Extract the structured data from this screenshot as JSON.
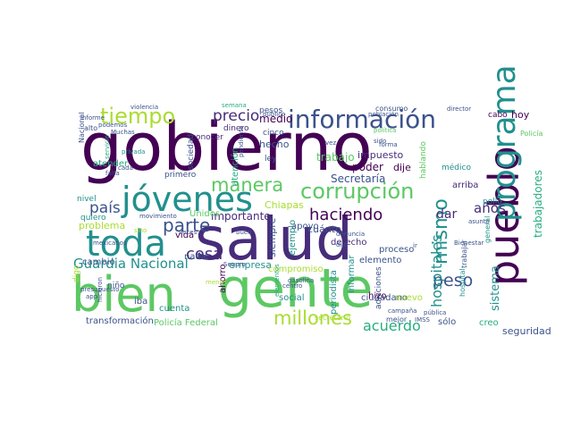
{
  "palette": {
    "dark_purple": "#440154",
    "purple": "#472c7a",
    "indigo": "#3b528b",
    "blue": "#31688e",
    "teal": "#21908d",
    "sea": "#27ad81",
    "green": "#5cc863",
    "lime": "#aadc32",
    "yellow": "#fde725"
  },
  "words": [
    {
      "id": "gobierno",
      "text": "gobierno",
      "color": "dark_purple"
    },
    {
      "id": "salud",
      "text": "salud",
      "color": "purple"
    },
    {
      "id": "gente",
      "text": "gente",
      "color": "green"
    },
    {
      "id": "bien",
      "text": "bien",
      "color": "green"
    },
    {
      "id": "jovenes",
      "text": "jóvenes",
      "color": "teal"
    },
    {
      "id": "toda",
      "text": "toda",
      "color": "teal"
    },
    {
      "id": "pueblo",
      "text": "pueblo",
      "color": "dark_purple"
    },
    {
      "id": "programa",
      "text": "programa",
      "color": "teal"
    },
    {
      "id": "informacion",
      "text": "información",
      "color": "indigo"
    },
    {
      "id": "corrupcion",
      "text": "corrupción",
      "color": "green"
    },
    {
      "id": "tiempo",
      "text": "tiempo",
      "color": "lime"
    },
    {
      "id": "precio",
      "text": "precio",
      "color": "purple"
    },
    {
      "id": "manera",
      "text": "manera",
      "color": "green"
    },
    {
      "id": "mismo",
      "text": "mismo",
      "color": "teal"
    },
    {
      "id": "millones",
      "text": "millones",
      "color": "lime"
    },
    {
      "id": "haciendo",
      "text": "haciendo",
      "color": "dark_purple"
    },
    {
      "id": "peso",
      "text": "peso",
      "color": "indigo"
    },
    {
      "id": "parte",
      "text": "parte",
      "color": "indigo"
    },
    {
      "id": "cosa",
      "text": "cosa",
      "color": "purple"
    },
    {
      "id": "pais",
      "text": "país",
      "color": "indigo"
    },
    {
      "id": "guardia_nacional",
      "text": "Guardia Nacional",
      "color": "teal"
    },
    {
      "id": "hospitales",
      "text": "hospitales",
      "color": "teal"
    },
    {
      "id": "anos",
      "text": "años",
      "color": "purple"
    },
    {
      "id": "dar",
      "text": "dar",
      "color": "purple"
    },
    {
      "id": "acuerdo",
      "text": "acuerdo",
      "color": "sea"
    },
    {
      "id": "trabajadores",
      "text": "trabajadores",
      "color": "sea"
    },
    {
      "id": "sistema",
      "text": "sistema",
      "color": "teal"
    },
    {
      "id": "seguridad",
      "text": "seguridad",
      "color": "indigo"
    },
    {
      "id": "hoy",
      "text": "hoy",
      "color": "dark_purple"
    },
    {
      "id": "cabo",
      "text": "cabo",
      "color": "dark_purple"
    },
    {
      "id": "policia",
      "text": "Policía",
      "color": "green"
    },
    {
      "id": "arriba",
      "text": "arriba",
      "color": "purple"
    },
    {
      "id": "secretaria",
      "text": "Secretaría",
      "color": "indigo"
    },
    {
      "id": "cuanto",
      "text": "cuánto",
      "color": "indigo"
    },
    {
      "id": "poder",
      "text": "poder",
      "color": "dark_purple"
    },
    {
      "id": "dije",
      "text": "dije",
      "color": "dark_purple"
    },
    {
      "id": "trabajo",
      "text": "trabajo",
      "color": "green"
    },
    {
      "id": "impuesto",
      "text": "impuesto",
      "color": "purple"
    },
    {
      "id": "medio",
      "text": "medio",
      "color": "dark_purple"
    },
    {
      "id": "hecho",
      "text": "hecho",
      "color": "indigo"
    },
    {
      "id": "atencion",
      "text": "atención",
      "color": "sea"
    },
    {
      "id": "sociedad",
      "text": "sociedad",
      "color": "indigo"
    },
    {
      "id": "importante",
      "text": "importante",
      "color": "purple"
    },
    {
      "id": "empresa",
      "text": "empresa",
      "color": "teal"
    },
    {
      "id": "siempre",
      "text": "siempre",
      "color": "indigo"
    },
    {
      "id": "ejemplo",
      "text": "ejemplo",
      "color": "teal"
    },
    {
      "id": "apoyo",
      "text": "apoyo",
      "color": "indigo"
    },
    {
      "id": "chiapas",
      "text": "Chiapas",
      "color": "lime"
    },
    {
      "id": "derecho",
      "text": "derecho",
      "color": "purple"
    },
    {
      "id": "proceso",
      "text": "proceso",
      "color": "indigo"
    },
    {
      "id": "elemento",
      "text": "elemento",
      "color": "indigo"
    },
    {
      "id": "adicciones",
      "text": "adicciones",
      "color": "indigo"
    },
    {
      "id": "ciudadano",
      "text": "ciudadano",
      "color": "indigo"
    },
    {
      "id": "compromiso",
      "text": "compromiso",
      "color": "lime"
    },
    {
      "id": "periodista",
      "text": "periodista",
      "color": "teal"
    },
    {
      "id": "informar",
      "text": "informar",
      "color": "teal"
    },
    {
      "id": "problema",
      "text": "problema",
      "color": "lime"
    },
    {
      "id": "quiero",
      "text": "quiero",
      "color": "teal"
    },
    {
      "id": "nivel",
      "text": "nivel",
      "color": "teal"
    },
    {
      "id": "vida",
      "text": "vida",
      "color": "dark_purple"
    },
    {
      "id": "unidos",
      "text": "Unidos",
      "color": "green"
    },
    {
      "id": "nadie",
      "text": "nadie",
      "color": "indigo"
    },
    {
      "id": "ahorro",
      "text": "ahorro",
      "color": "dark_purple"
    },
    {
      "id": "social",
      "text": "social",
      "color": "teal"
    },
    {
      "id": "hizo",
      "text": "hizo",
      "color": "dark_purple"
    },
    {
      "id": "nuevo",
      "text": "nuevo",
      "color": "lime"
    },
    {
      "id": "solo",
      "text": "sólo",
      "color": "indigo"
    },
    {
      "id": "creo",
      "text": "creo",
      "color": "sea"
    },
    {
      "id": "cuenta",
      "text": "cuenta",
      "color": "teal"
    },
    {
      "id": "policia_federal",
      "text": "Policía Federal",
      "color": "green"
    },
    {
      "id": "transformacion",
      "text": "transformación",
      "color": "indigo"
    },
    {
      "id": "iba",
      "text": "iba",
      "color": "indigo"
    },
    {
      "id": "nino",
      "text": "niño",
      "color": "indigo"
    },
    {
      "id": "cambio",
      "text": "cambio",
      "color": "indigo"
    },
    {
      "id": "atender",
      "text": "atender",
      "color": "sea"
    },
    {
      "id": "nacional",
      "text": "Nacional",
      "color": "indigo"
    },
    {
      "id": "alto",
      "text": "alto",
      "color": "indigo"
    },
    {
      "id": "consumo",
      "text": "consumo",
      "color": "indigo"
    },
    {
      "id": "pesos",
      "text": "pesos",
      "color": "indigo"
    },
    {
      "id": "cinco",
      "text": "cinco",
      "color": "indigo"
    },
    {
      "id": "ley",
      "text": "ley",
      "color": "indigo"
    },
    {
      "id": "dinero",
      "text": "dinero",
      "color": "purple"
    },
    {
      "id": "conocer",
      "text": "conocer",
      "color": "purple"
    },
    {
      "id": "primero",
      "text": "primero",
      "color": "indigo"
    },
    {
      "id": "medico",
      "text": "médico",
      "color": "teal"
    },
    {
      "id": "hablando",
      "text": "hablando",
      "color": "green"
    },
    {
      "id": "pollo",
      "text": "pollo",
      "color": "teal"
    },
    {
      "id": "hospital",
      "text": "hospital",
      "color": "teal"
    },
    {
      "id": "general",
      "text": "general",
      "color": "teal"
    },
    {
      "id": "trabajar",
      "text": "trabajar",
      "color": "indigo"
    },
    {
      "id": "secretario",
      "text": "secretario",
      "color": "lime"
    },
    {
      "id": "mejor",
      "text": "mejor",
      "color": "indigo"
    },
    {
      "id": "campana",
      "text": "campaña",
      "color": "indigo"
    },
    {
      "id": "publica",
      "text": "pública",
      "color": "indigo"
    },
    {
      "id": "bienestar",
      "text": "Bienestar",
      "color": "indigo"
    },
    {
      "id": "semana",
      "text": "semana",
      "color": "sea"
    },
    {
      "id": "violencia",
      "text": "violencia",
      "color": "indigo"
    },
    {
      "id": "informe",
      "text": "informe",
      "color": "indigo"
    },
    {
      "id": "podemos",
      "text": "podemos",
      "color": "indigo"
    },
    {
      "id": "muchas",
      "text": "Muchas",
      "color": "indigo"
    },
    {
      "id": "servicio",
      "text": "servicio",
      "color": "sea"
    },
    {
      "id": "privada",
      "text": "privada",
      "color": "teal"
    },
    {
      "id": "falta",
      "text": "falta",
      "color": "indigo"
    },
    {
      "id": "cada",
      "text": "cada",
      "color": "indigo"
    },
    {
      "id": "digo",
      "text": "digo",
      "color": "lime"
    },
    {
      "id": "veces",
      "text": "veces",
      "color": "indigo"
    },
    {
      "id": "movimiento",
      "text": "movimiento",
      "color": "indigo"
    },
    {
      "id": "mexicanos",
      "text": "mexicanos",
      "color": "indigo"
    },
    {
      "id": "presupuesto",
      "text": "presupuesto",
      "color": "indigo"
    },
    {
      "id": "hicieron",
      "text": "hicieron",
      "color": "indigo"
    },
    {
      "id": "app",
      "text": "app",
      "color": "indigo"
    },
    {
      "id": "elementos",
      "text": "elementos",
      "color": "sea"
    },
    {
      "id": "menos",
      "text": "menos",
      "color": "lime"
    },
    {
      "id": "seguro",
      "text": "Seguro",
      "color": "indigo"
    },
    {
      "id": "dijo",
      "text": "dijo",
      "color": "indigo"
    },
    {
      "id": "asunto",
      "text": "asunto",
      "color": "indigo"
    },
    {
      "id": "ir",
      "text": "ir",
      "color": "indigo"
    },
    {
      "id": "poblacion",
      "text": "población",
      "color": "indigo"
    },
    {
      "id": "director",
      "text": "director",
      "color": "indigo"
    },
    {
      "id": "publico",
      "text": "público",
      "color": "indigo"
    },
    {
      "id": "vez",
      "text": "vez",
      "color": "indigo"
    },
    {
      "id": "sido",
      "text": "sido",
      "color": "indigo"
    },
    {
      "id": "forma",
      "text": "forma",
      "color": "indigo"
    },
    {
      "id": "politica",
      "text": "política",
      "color": "green"
    },
    {
      "id": "pendiente",
      "text": "pendiente",
      "color": "indigo"
    },
    {
      "id": "sino",
      "text": "sino",
      "color": "lime"
    },
    {
      "id": "denuncia",
      "text": "denuncia",
      "color": "indigo"
    },
    {
      "id": "imss",
      "text": "IMSS",
      "color": "indigo"
    },
    {
      "id": "gasolina",
      "text": "gasolina",
      "color": "indigo"
    },
    {
      "id": "centro",
      "text": "centro",
      "color": "indigo"
    },
    {
      "id": "buen",
      "text": "buen",
      "color": "indigo"
    }
  ]
}
